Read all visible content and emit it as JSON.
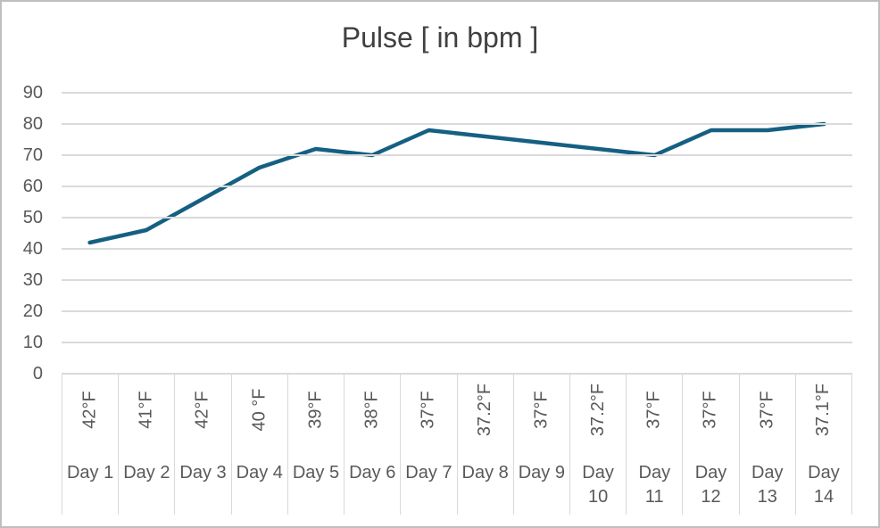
{
  "chart": {
    "title": "Pulse [ in bpm ]",
    "colors": {
      "accent": "#156082",
      "gridline": "#DADADA",
      "separator": "#D9D9D9",
      "label": "#595959",
      "title": "#404040",
      "frame_border": "#BFBFBF"
    }
  },
  "chart_data": {
    "type": "line",
    "title": "Pulse [ in bpm ]",
    "categories": [
      "Day 1",
      "Day 2",
      "Day 3",
      "Day 4",
      "Day 5",
      "Day 6",
      "Day 7",
      "Day 8",
      "Day 9",
      "Day 10",
      "Day 11",
      "Day 12",
      "Day 13",
      "Day 14"
    ],
    "x_secondary_labels": [
      "42°F",
      "41°F",
      "42°F",
      "40 °F",
      "39°F",
      "38°F",
      "37°F",
      "37.2°F",
      "37°F",
      "37.2°F",
      "37°F",
      "37°F",
      "37°F",
      "37.1°F"
    ],
    "series": [
      {
        "name": "Pulse",
        "values": [
          42,
          46,
          56,
          66,
          72,
          70,
          78,
          76,
          74,
          72,
          70,
          78,
          78,
          80
        ]
      }
    ],
    "xlabel": "",
    "ylabel": "",
    "ylim": [
      0,
      90
    ],
    "yticks": [
      90,
      80,
      70,
      60,
      50,
      40,
      30,
      20,
      10,
      0
    ],
    "grid": "horizontal",
    "legend": "none"
  }
}
